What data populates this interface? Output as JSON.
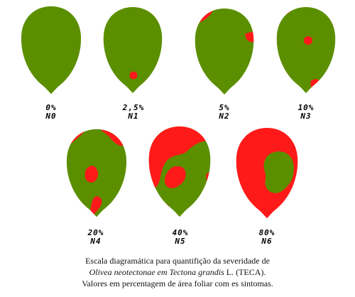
{
  "colors": {
    "healthy": "#5b8f00",
    "lesion": "#ff1a1a",
    "text": "#000000"
  },
  "levels": [
    {
      "percent": "0%",
      "code": "N0",
      "severity_percent": 0
    },
    {
      "percent": "2,5%",
      "code": "N1",
      "severity_percent": 2.5
    },
    {
      "percent": "5%",
      "code": "N2",
      "severity_percent": 5
    },
    {
      "percent": "10%",
      "code": "N3",
      "severity_percent": 10
    },
    {
      "percent": "20%",
      "code": "N4",
      "severity_percent": 20
    },
    {
      "percent": "40%",
      "code": "N5",
      "severity_percent": 40
    },
    {
      "percent": "80%",
      "code": "N6",
      "severity_percent": 80
    }
  ],
  "caption": {
    "line1": "Escala diagramática para quantifição da severidade de",
    "line2_italic": "Olivea neotectonae em Tectona grandis",
    "line2_rest": " L. (TECA).",
    "line3": "Valores em percentagem de área foliar com es sintomas."
  }
}
